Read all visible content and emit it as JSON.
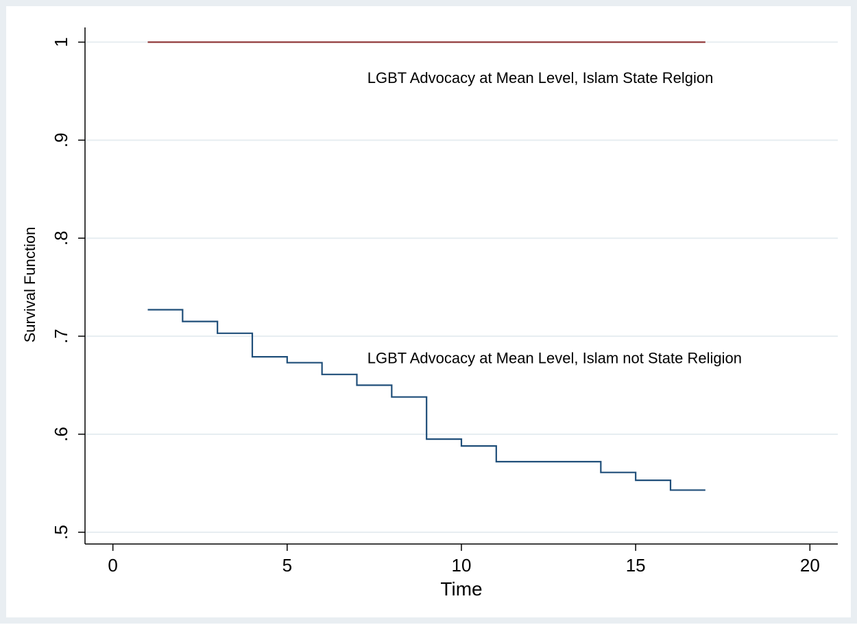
{
  "chart_data": {
    "type": "line",
    "step": true,
    "xlabel": "Time",
    "ylabel": "Survival Function",
    "xlim": [
      -0.8,
      20.8
    ],
    "ylim": [
      0.488,
      1.015
    ],
    "xticks": [
      0,
      5,
      10,
      15,
      20
    ],
    "xtick_labels": [
      "0",
      "5",
      "10",
      "15",
      "20"
    ],
    "yticks": [
      0.5,
      0.6,
      0.7,
      0.8,
      0.9,
      1
    ],
    "ytick_labels": [
      ".5",
      ".6",
      ".7",
      ".8",
      ".9",
      "1"
    ],
    "grid": "horizontal",
    "series": [
      {
        "color": "#8b2f2f",
        "x": [
          1,
          17
        ],
        "y": [
          1.0,
          1.0
        ]
      },
      {
        "color": "#1f4e79",
        "x": [
          1,
          2,
          3,
          4,
          5,
          6,
          7,
          8,
          9,
          10,
          11,
          12,
          13,
          14,
          15,
          16,
          17
        ],
        "y": [
          0.727,
          0.715,
          0.703,
          0.679,
          0.673,
          0.661,
          0.65,
          0.638,
          0.595,
          0.588,
          0.572,
          0.572,
          0.572,
          0.561,
          0.553,
          0.543,
          0.543
        ]
      }
    ],
    "annotations": [
      {
        "text": "LGBT Advocacy at Mean Level, Islam State Relgion",
        "x": 7.3,
        "y": 0.964
      },
      {
        "text": "LGBT Advocacy at Mean Level, Islam not State Religion",
        "x": 7.3,
        "y": 0.678
      }
    ]
  },
  "colors": {
    "outer_background": "#e9eef2",
    "plot_background": "#ffffff",
    "gridline": "#e6edf1",
    "axis": "#000000"
  }
}
